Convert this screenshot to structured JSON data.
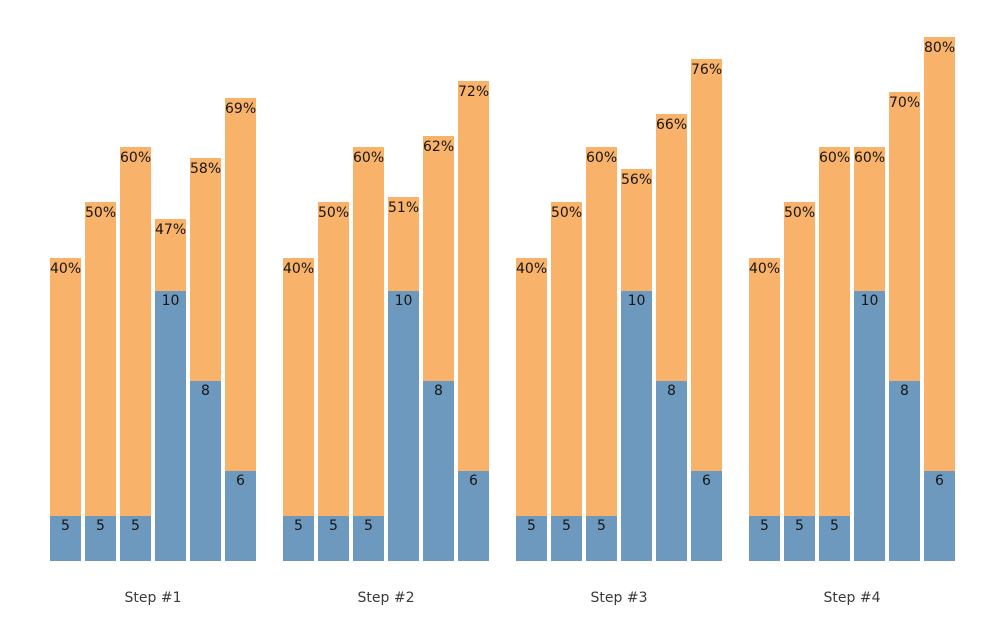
{
  "chart_data": {
    "type": "bar",
    "subtype": "grouped-overlay-funnel",
    "groups": [
      {
        "label": "Step #1",
        "bars": [
          {
            "count": 5,
            "percent": 40
          },
          {
            "count": 5,
            "percent": 50
          },
          {
            "count": 5,
            "percent": 60
          },
          {
            "count": 10,
            "percent": 47
          },
          {
            "count": 8,
            "percent": 58
          },
          {
            "count": 6,
            "percent": 69
          }
        ]
      },
      {
        "label": "Step #2",
        "bars": [
          {
            "count": 5,
            "percent": 40
          },
          {
            "count": 5,
            "percent": 50
          },
          {
            "count": 5,
            "percent": 60
          },
          {
            "count": 10,
            "percent": 51
          },
          {
            "count": 8,
            "percent": 62
          },
          {
            "count": 6,
            "percent": 72
          }
        ]
      },
      {
        "label": "Step #3",
        "bars": [
          {
            "count": 5,
            "percent": 40
          },
          {
            "count": 5,
            "percent": 50
          },
          {
            "count": 5,
            "percent": 60
          },
          {
            "count": 10,
            "percent": 56
          },
          {
            "count": 8,
            "percent": 66
          },
          {
            "count": 6,
            "percent": 76
          }
        ]
      },
      {
        "label": "Step #4",
        "bars": [
          {
            "count": 5,
            "percent": 40
          },
          {
            "count": 5,
            "percent": 50
          },
          {
            "count": 5,
            "percent": 60
          },
          {
            "count": 10,
            "percent": 60
          },
          {
            "count": 8,
            "percent": 70
          },
          {
            "count": 6,
            "percent": 80
          }
        ]
      }
    ],
    "percent_label_suffix": "%",
    "colors": {
      "percent_bar": "#f8b269",
      "count_bar": "#6e99be",
      "bar_label": "#161616",
      "group_label": "#3a3a3a",
      "background": "#ffffff"
    },
    "layout": {
      "title": "",
      "axes_visible": false,
      "gridlines": false,
      "legend": "none"
    }
  }
}
